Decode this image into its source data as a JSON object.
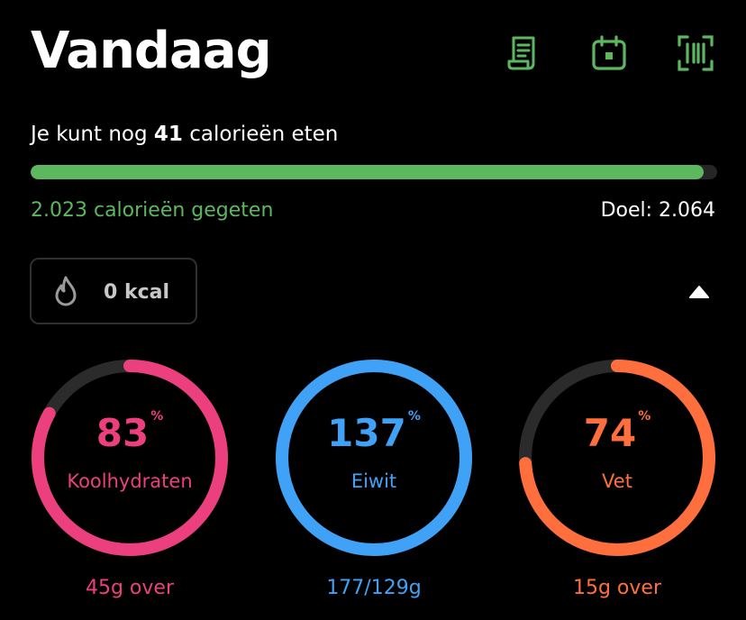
{
  "header": {
    "title": "Vandaag",
    "icons": [
      "receipt-icon",
      "calendar-icon",
      "barcode-scanner-icon"
    ]
  },
  "calories": {
    "remaining_prefix": "Je kunt nog",
    "remaining_value": "41",
    "remaining_suffix": "calorieën eten",
    "progress": 0.98,
    "eaten_label": "2.023 calorieën gegeten",
    "goal_label": "Doel: 2.064"
  },
  "burned": {
    "icon": "flame-icon",
    "label": "0 kcal"
  },
  "macros": [
    {
      "value": "83",
      "sign": "%",
      "name": "Koolhydraten",
      "sub": "45g over",
      "color": "#ec3f7e",
      "fraction": 0.83
    },
    {
      "value": "137",
      "sign": "%",
      "name": "Eiwit",
      "sub": "177/129g",
      "color": "#3fa2f7",
      "fraction": 1.0
    },
    {
      "value": "74",
      "sign": "%",
      "name": "Vet",
      "sub": "15g over",
      "color": "#ff6f3d",
      "fraction": 0.74
    }
  ],
  "colors": {
    "accent_green": "#5cb85f",
    "track": "#2b2b2b"
  }
}
